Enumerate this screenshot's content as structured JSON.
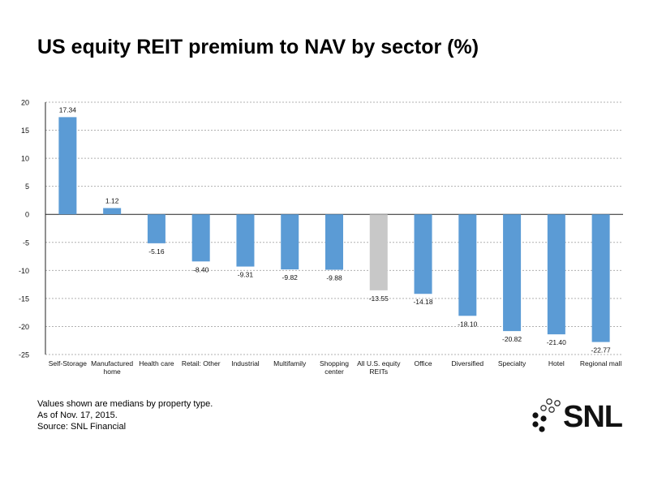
{
  "title": "US equity REIT premium to NAV by sector (%)",
  "notes": [
    "Values shown are medians by property type.",
    "As of Nov. 17, 2015.",
    "Source: SNL Financial"
  ],
  "logo": {
    "text": "SNL",
    "icon": "dot-cluster-icon"
  },
  "colors": {
    "bar": "#5b9bd5",
    "highlight_bar": "#c8c8c8",
    "grid": "#b0b0b0"
  },
  "chart_data": {
    "type": "bar",
    "title": "US equity REIT premium to NAV by sector (%)",
    "xlabel": "",
    "ylabel": "",
    "ylim": [
      -25,
      20
    ],
    "yticks": [
      20,
      15,
      10,
      5,
      0,
      -5,
      -10,
      -15,
      -20,
      -25
    ],
    "grid": true,
    "grid_style": "dotted",
    "categories": [
      [
        "Self-Storage"
      ],
      [
        "Manufactured",
        "home"
      ],
      [
        "Health care"
      ],
      [
        "Retail: Other"
      ],
      [
        "Industrial"
      ],
      [
        "Multifamily"
      ],
      [
        "Shopping",
        "center"
      ],
      [
        "All U.S. equity",
        "REITs"
      ],
      [
        "Office"
      ],
      [
        "Diversified"
      ],
      [
        "Specialty"
      ],
      [
        "Hotel"
      ],
      [
        "Regional mall"
      ]
    ],
    "values": [
      17.34,
      1.12,
      -5.16,
      -8.4,
      -9.31,
      -9.82,
      -9.88,
      -13.55,
      -14.18,
      -18.1,
      -20.82,
      -21.4,
      -22.77
    ],
    "value_labels": [
      "17.34",
      "1.12",
      "-5.16",
      "-8.40",
      "-9.31",
      "-9.82",
      "-9.88",
      "-13.55",
      "-14.18",
      "-18.10",
      "-20.82",
      "-21.40",
      "-22.77"
    ],
    "highlight_index": 7
  }
}
